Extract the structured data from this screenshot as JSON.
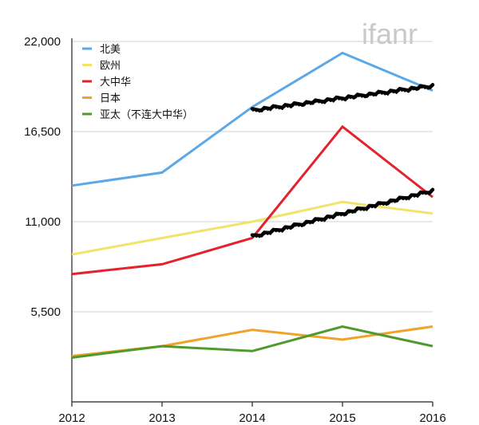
{
  "watermark": "ifanr",
  "colors": {
    "axis": "#222222",
    "grid": "#d0d0d0",
    "annotation": "#000000"
  },
  "chart_data": {
    "type": "line",
    "title": "",
    "xlabel": "",
    "ylabel": "",
    "x": [
      "2012",
      "2013",
      "2014",
      "2015",
      "2016"
    ],
    "ylim": [
      0,
      22000
    ],
    "y_ticks": [
      "5,500",
      "11,000",
      "16,500",
      "22,000"
    ],
    "grid": "horizontal",
    "legend_position": "top-left",
    "series": [
      {
        "name": "北美",
        "color": "#5aa8e8",
        "values": [
          13200,
          14000,
          18000,
          21300,
          19000
        ]
      },
      {
        "name": "欧州",
        "color": "#f2e36b",
        "values": [
          9000,
          10000,
          11000,
          12200,
          11500
        ]
      },
      {
        "name": "大中华",
        "color": "#e3222b",
        "values": [
          7800,
          8400,
          10000,
          16800,
          12500
        ]
      },
      {
        "name": "日本",
        "color": "#f0a32a",
        "values": [
          2800,
          3400,
          4400,
          3800,
          4600
        ]
      },
      {
        "name": "亚太（不连大中华）",
        "color": "#4f9a2e",
        "values": [
          2700,
          3400,
          3100,
          4600,
          3400
        ]
      }
    ],
    "annotations": [
      {
        "type": "hand-drawn-line",
        "from": [
          "2014",
          17800
        ],
        "to": [
          "2016",
          19300
        ]
      },
      {
        "type": "hand-drawn-line",
        "from": [
          "2014",
          10100
        ],
        "to": [
          "2016",
          12900
        ]
      }
    ]
  }
}
